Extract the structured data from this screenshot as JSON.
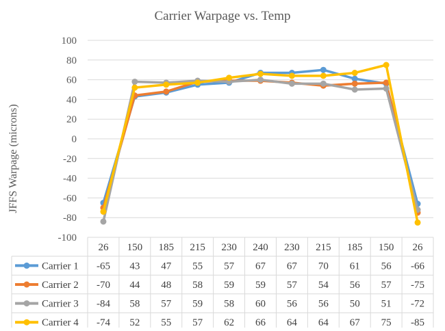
{
  "chart_data": {
    "type": "line",
    "title": "Carrier Warpage vs. Temp",
    "ylabel": "JFFS Warpage (microns)",
    "xlabel": "",
    "ylim": [
      -100,
      100
    ],
    "ytick_step": 20,
    "grid": true,
    "legend": "data-table-below",
    "categories": [
      "26",
      "150",
      "185",
      "215",
      "230",
      "240",
      "230",
      "215",
      "185",
      "150",
      "26"
    ],
    "series": [
      {
        "name": "Carrier 1",
        "color": "#5B9BD5",
        "values": [
          -65,
          43,
          47,
          55,
          57,
          67,
          67,
          70,
          61,
          56,
          -66
        ]
      },
      {
        "name": "Carrier 2",
        "color": "#ED7D31",
        "values": [
          -70,
          44,
          48,
          58,
          59,
          59,
          57,
          54,
          56,
          57,
          -75
        ]
      },
      {
        "name": "Carrier 3",
        "color": "#A5A5A5",
        "values": [
          -84,
          58,
          57,
          59,
          58,
          60,
          56,
          56,
          50,
          51,
          -72
        ]
      },
      {
        "name": "Carrier 4",
        "color": "#FFC000",
        "values": [
          -74,
          52,
          55,
          57,
          62,
          66,
          64,
          64,
          67,
          75,
          -85
        ]
      }
    ]
  }
}
